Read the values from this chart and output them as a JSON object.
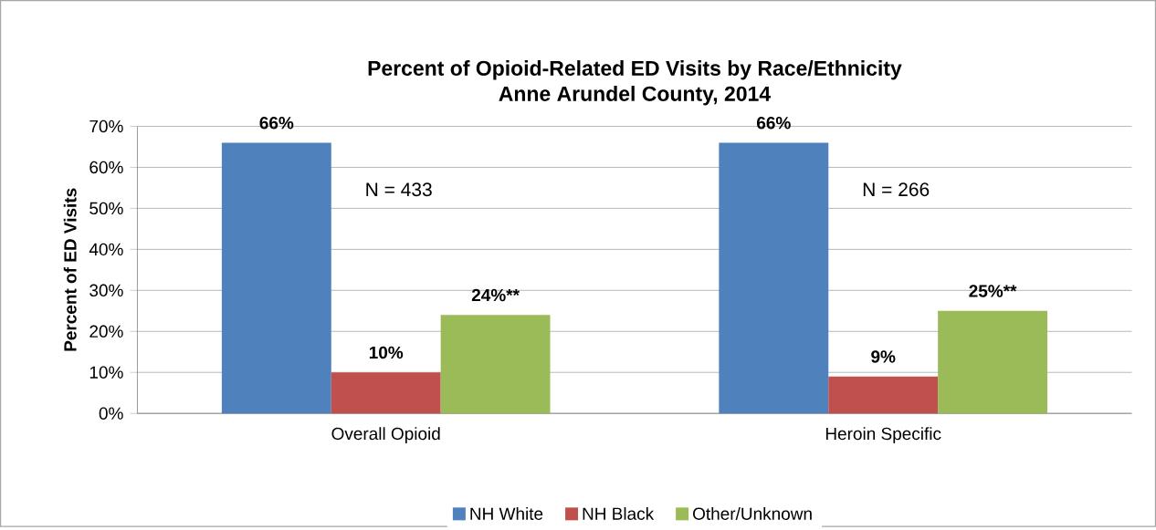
{
  "chart_data": {
    "type": "bar",
    "title": "Percent of Opioid-Related ED Visits by Race/Ethnicity",
    "subtitle": "Anne Arundel County, 2014",
    "ylabel": "Percent of ED Visits",
    "categories": [
      "Overall Opioid",
      "Heroin Specific"
    ],
    "series": [
      {
        "name": "NH White",
        "color": "#4f81bd",
        "values": [
          66,
          66
        ],
        "value_labels": [
          "66%",
          "66%"
        ]
      },
      {
        "name": "NH Black",
        "color": "#c0504d",
        "values": [
          10,
          9
        ],
        "value_labels": [
          "10%",
          "9%"
        ]
      },
      {
        "name": "Other/Unknown",
        "color": "#9bbb59",
        "values": [
          24,
          25
        ],
        "value_labels": [
          "24%**",
          "25%**"
        ]
      }
    ],
    "annotations": [
      "N = 433",
      "N = 266"
    ],
    "ylim": [
      0,
      70
    ],
    "yticks": [
      {
        "value": 0,
        "label": "0%"
      },
      {
        "value": 10,
        "label": "10%"
      },
      {
        "value": 20,
        "label": "20%"
      },
      {
        "value": 30,
        "label": "30%"
      },
      {
        "value": 40,
        "label": "40%"
      },
      {
        "value": 50,
        "label": "50%"
      },
      {
        "value": 60,
        "label": "60%"
      },
      {
        "value": 70,
        "label": "70%"
      }
    ],
    "grid": "y",
    "legend": "bottom"
  }
}
